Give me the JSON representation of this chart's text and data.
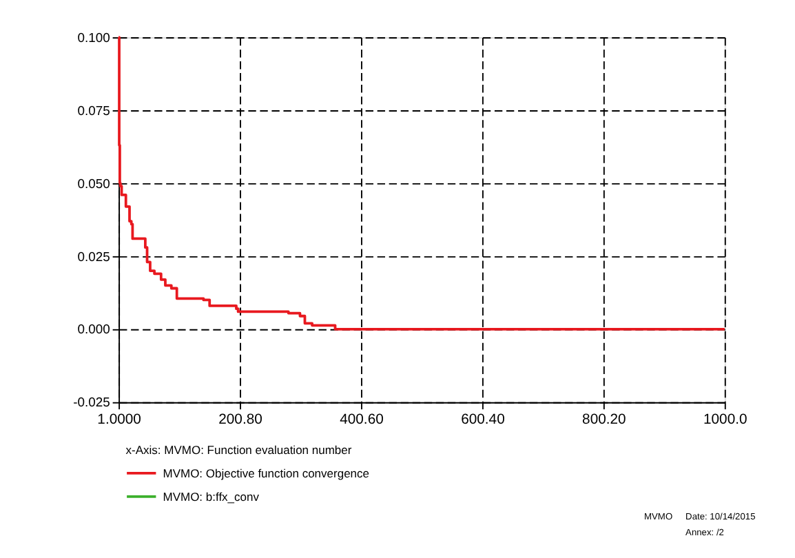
{
  "chart_data": {
    "type": "step",
    "xlabel": "x-Axis:   MVMO: Function evaluation number",
    "series": [
      {
        "name": "MVMO: Objective function convergence",
        "color": "#e8191f",
        "x": [
          1,
          2,
          3,
          4,
          6,
          13,
          19,
          22,
          24,
          45,
          48,
          53,
          60,
          71,
          78,
          88,
          97,
          141,
          151,
          195,
          198,
          281,
          300,
          308,
          320,
          358,
          1000
        ],
        "values": [
          0.1,
          0.063,
          0.05,
          0.049,
          0.046,
          0.042,
          0.037,
          0.036,
          0.031,
          0.028,
          0.023,
          0.02,
          0.019,
          0.017,
          0.015,
          0.014,
          0.0105,
          0.01,
          0.008,
          0.007,
          0.006,
          0.0055,
          0.0045,
          0.002,
          0.0013,
          0.0,
          0.0
        ]
      },
      {
        "name": "MVMO: b:ffx_conv",
        "color": "#3cb02c"
      }
    ],
    "xlim": [
      1,
      1000
    ],
    "ylim": [
      -0.025,
      0.1
    ],
    "xticks": [
      {
        "value": 1,
        "label": "1.0000"
      },
      {
        "value": 200.8,
        "label": "200.80"
      },
      {
        "value": 400.6,
        "label": "400.60"
      },
      {
        "value": 600.4,
        "label": "600.40"
      },
      {
        "value": 800.2,
        "label": "800.20"
      },
      {
        "value": 1000,
        "label": "1000.0"
      }
    ],
    "yticks": [
      {
        "value": -0.025,
        "label": "-0.025"
      },
      {
        "value": 0,
        "label": "0.000"
      },
      {
        "value": 0.025,
        "label": "0.025"
      },
      {
        "value": 0.05,
        "label": "0.050"
      },
      {
        "value": 0.075,
        "label": "0.075"
      },
      {
        "value": 0.1,
        "label": "0.100"
      }
    ],
    "grid": true,
    "legend": "bottom",
    "line_style": "solid",
    "annotations": [
      "MVMO",
      "Date: 10/14/2015",
      "Annex:  /2"
    ]
  }
}
